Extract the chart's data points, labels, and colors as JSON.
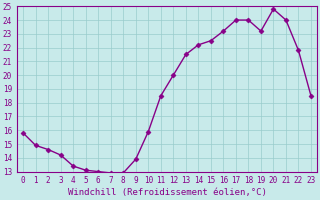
{
  "x": [
    0,
    1,
    2,
    3,
    4,
    5,
    6,
    7,
    8,
    9,
    10,
    11,
    12,
    13,
    14,
    15,
    16,
    17,
    18,
    19,
    20,
    21,
    22,
    23
  ],
  "y": [
    15.8,
    14.9,
    14.6,
    14.2,
    13.4,
    13.1,
    13.0,
    12.9,
    12.9,
    13.9,
    15.9,
    18.5,
    20.0,
    21.5,
    22.2,
    22.5,
    23.2,
    24.0,
    24.0,
    23.2,
    24.8,
    24.0,
    21.8,
    18.5
  ],
  "line_color": "#880088",
  "marker": "D",
  "markersize": 2.5,
  "linewidth": 1.0,
  "bg_color": "#c8eaea",
  "grid_color": "#99cccc",
  "xlabel": "Windchill (Refroidissement éolien,°C)",
  "xlabel_fontsize": 6.5,
  "ylim": [
    13,
    25
  ],
  "xlim": [
    -0.5,
    23.5
  ],
  "yticks": [
    13,
    14,
    15,
    16,
    17,
    18,
    19,
    20,
    21,
    22,
    23,
    24,
    25
  ],
  "xticks": [
    0,
    1,
    2,
    3,
    4,
    5,
    6,
    7,
    8,
    9,
    10,
    11,
    12,
    13,
    14,
    15,
    16,
    17,
    18,
    19,
    20,
    21,
    22,
    23
  ],
  "tick_fontsize": 5.5,
  "tick_color": "#880088",
  "spine_color": "#880088"
}
